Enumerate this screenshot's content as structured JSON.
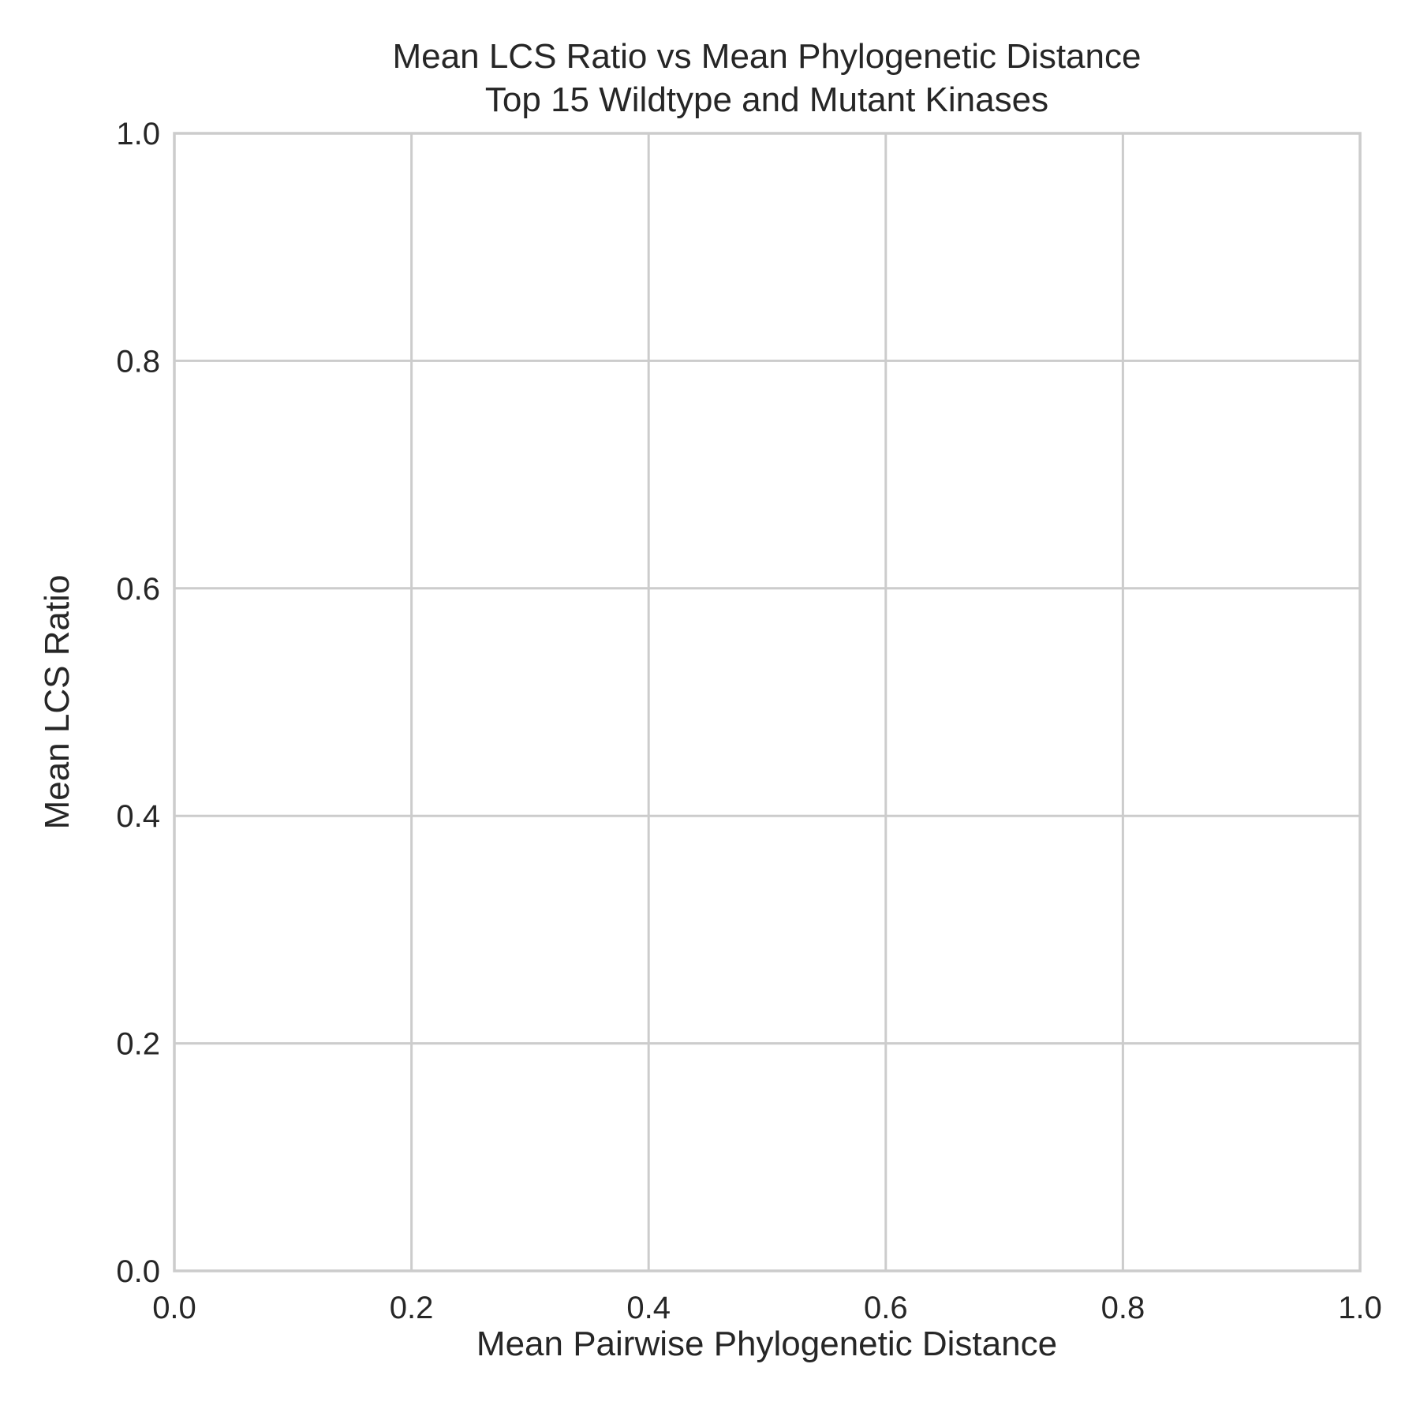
{
  "chart_data": {
    "type": "scatter",
    "title": [
      "Mean LCS Ratio vs Mean Phylogenetic Distance",
      "Top 15 Wildtype and Mutant Kinases"
    ],
    "xlabel": "Mean Pairwise Phylogenetic Distance",
    "ylabel": "Mean LCS Ratio",
    "xlim": [
      0.0,
      1.0
    ],
    "ylim": [
      0.0,
      1.0
    ],
    "xticks": [
      0.0,
      0.2,
      0.4,
      0.6,
      0.8,
      1.0
    ],
    "xtick_labels": [
      "0.0",
      "0.2",
      "0.4",
      "0.6",
      "0.8",
      "1.0"
    ],
    "yticks": [
      0.0,
      0.2,
      0.4,
      0.6,
      0.8,
      1.0
    ],
    "ytick_labels": [
      "0.0",
      "0.2",
      "0.4",
      "0.6",
      "0.8",
      "1.0"
    ],
    "grid": true,
    "series": []
  },
  "colors": {
    "grid": "#cccccc",
    "text": "#262626",
    "background": "#ffffff"
  }
}
